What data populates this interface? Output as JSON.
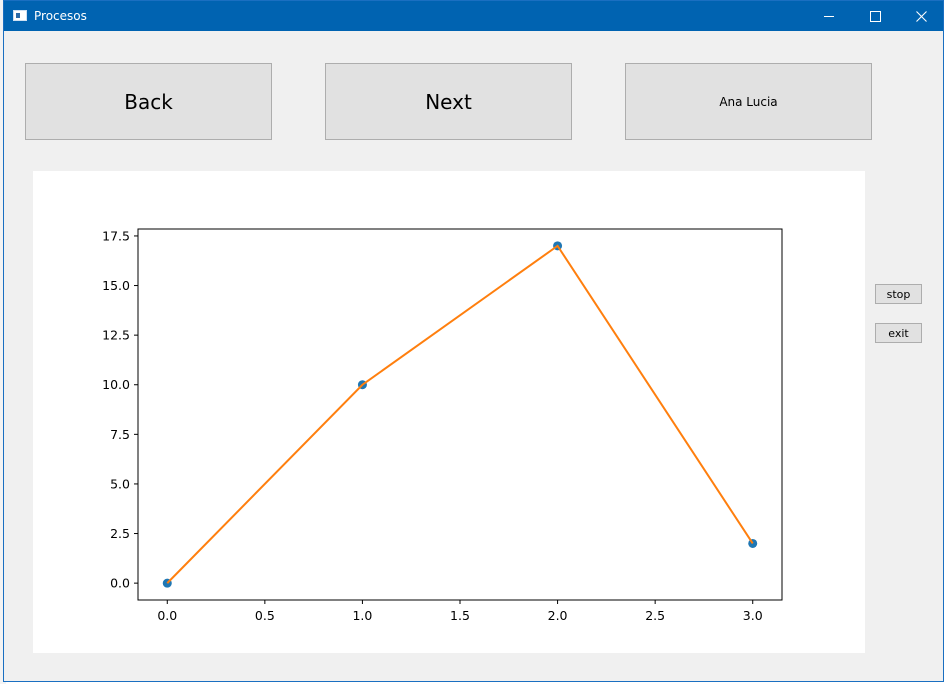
{
  "window": {
    "title": "Procesos"
  },
  "buttons": {
    "back_label": "Back",
    "next_label": "Next",
    "user_label": "Ana Lucia",
    "stop_label": "stop",
    "exit_label": "exit"
  },
  "colors": {
    "titlebar": "#0063b1",
    "line": "#ff7f0e",
    "marker": "#1f77b4"
  },
  "chart_data": {
    "type": "line",
    "x": [
      0.0,
      1.0,
      2.0,
      3.0
    ],
    "series": [
      {
        "values": [
          0.0,
          10.0,
          17.0,
          2.0
        ]
      }
    ],
    "xticks": [
      "0.0",
      "0.5",
      "1.0",
      "1.5",
      "2.0",
      "2.5",
      "3.0"
    ],
    "yticks": [
      "0.0",
      "2.5",
      "5.0",
      "7.5",
      "10.0",
      "12.5",
      "15.0",
      "17.5"
    ],
    "xlim": [
      -0.15,
      3.15
    ],
    "ylim": [
      -0.85,
      17.85
    ],
    "grid": false,
    "markers": true
  }
}
